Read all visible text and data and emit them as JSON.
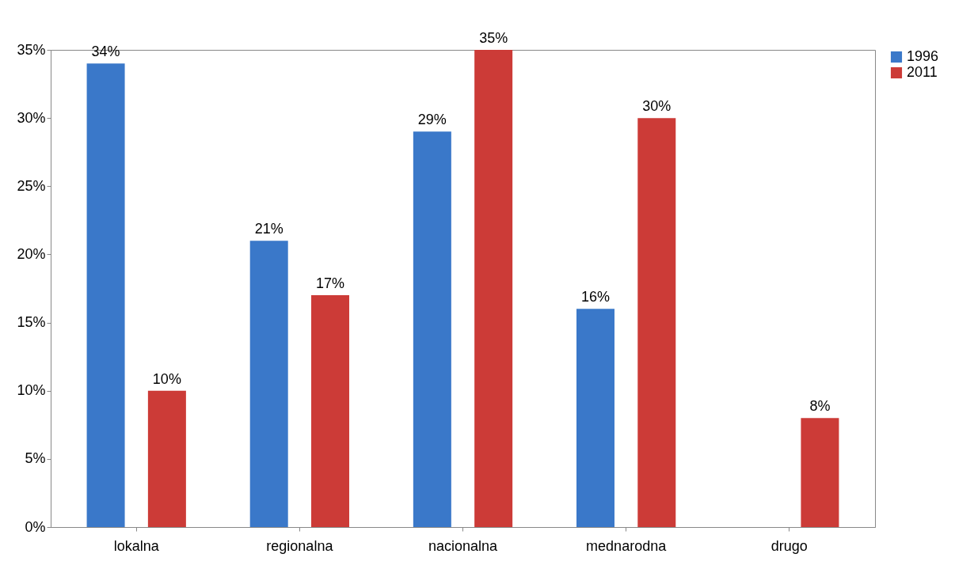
{
  "chart_data": {
    "type": "bar",
    "categories": [
      "lokalna",
      "regionalna",
      "nacionalna",
      "mednarodna",
      "drugo"
    ],
    "series": [
      {
        "name": "1996",
        "color": "#3a78c9",
        "values": [
          34,
          21,
          29,
          16,
          null
        ],
        "value_labels": [
          "34%",
          "21%",
          "29%",
          "16%",
          null
        ]
      },
      {
        "name": "2011",
        "color": "#cc3b37",
        "values": [
          10,
          17,
          35,
          30,
          8
        ],
        "value_labels": [
          "10%",
          "17%",
          "35%",
          "30%",
          "8%"
        ]
      }
    ],
    "ylim": [
      0,
      35
    ],
    "yticks": [
      {
        "value": 0,
        "label": "0%"
      },
      {
        "value": 5,
        "label": "5%"
      },
      {
        "value": 10,
        "label": "10%"
      },
      {
        "value": 15,
        "label": "15%"
      },
      {
        "value": 20,
        "label": "20%"
      },
      {
        "value": 25,
        "label": "25%"
      },
      {
        "value": 30,
        "label": "30%"
      },
      {
        "value": 35,
        "label": "35%"
      }
    ],
    "grid": false,
    "legend": "right"
  }
}
